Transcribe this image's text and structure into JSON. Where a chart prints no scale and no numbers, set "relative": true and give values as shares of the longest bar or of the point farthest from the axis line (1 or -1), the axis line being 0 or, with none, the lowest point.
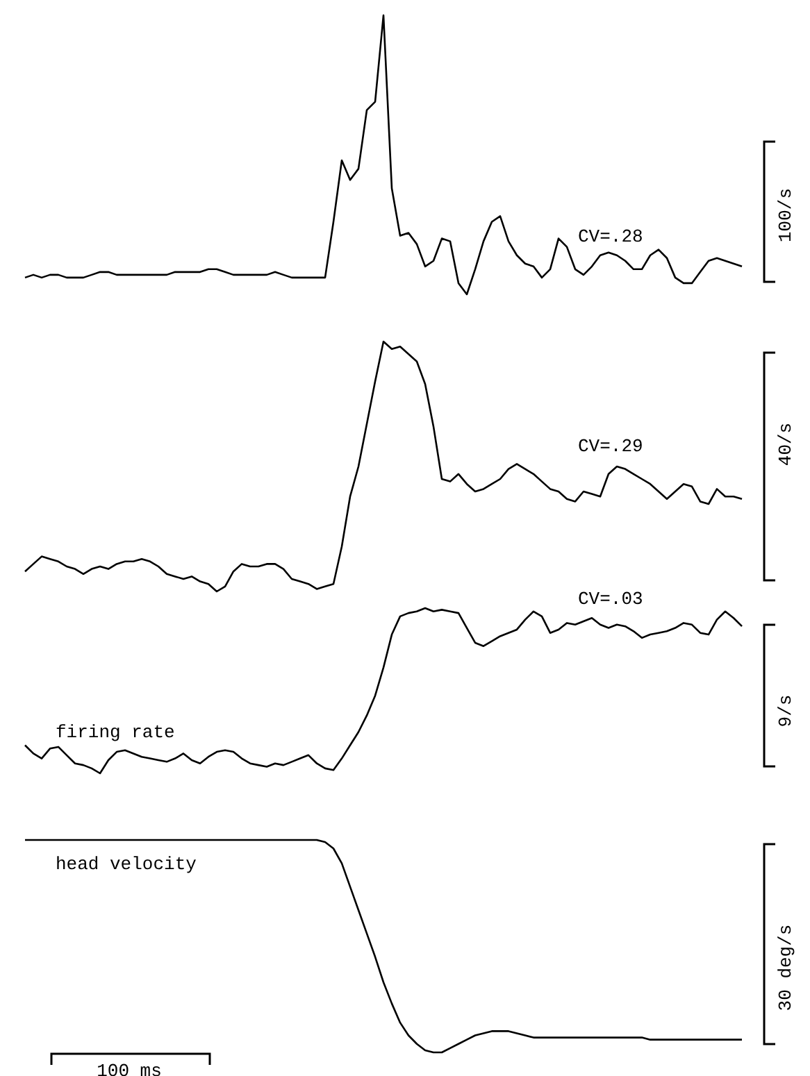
{
  "chart_data": [
    {
      "type": "line",
      "relative": true,
      "categories": [
        null,
        null,
        null,
        null,
        null,
        null,
        null,
        null,
        null,
        null,
        null,
        null,
        null,
        null,
        null,
        null,
        null,
        null,
        null,
        null,
        null,
        null,
        null,
        null,
        null,
        null,
        null,
        null,
        null,
        null,
        null,
        null,
        null,
        null,
        null,
        null,
        null,
        null,
        null,
        null,
        null,
        null,
        null,
        null,
        null,
        null,
        null,
        null,
        null,
        null,
        null,
        null,
        null,
        null,
        null,
        null,
        null,
        null,
        null,
        null,
        null,
        null,
        null,
        null,
        null,
        null,
        null,
        null,
        null,
        null,
        null,
        null,
        null,
        null,
        null,
        null,
        null,
        null,
        null,
        null,
        null,
        null,
        null,
        null,
        null,
        null,
        null
      ],
      "series": [
        {
          "color": "#000000",
          "values": [
            0.06,
            0.07,
            0.06,
            0.07,
            0.07,
            0.06,
            0.06,
            0.06,
            0.07,
            0.08,
            0.08,
            0.07,
            0.07,
            0.07,
            0.07,
            0.07,
            0.07,
            0.07,
            0.08,
            0.08,
            0.08,
            0.08,
            0.09,
            0.09,
            0.08,
            0.07,
            0.07,
            0.07,
            0.07,
            0.07,
            0.08,
            0.07,
            0.06,
            0.06,
            0.06,
            0.06,
            0.06,
            0.26,
            0.48,
            0.41,
            0.45,
            0.66,
            0.69,
            1,
            0.38,
            0.21,
            0.22,
            0.18,
            0.1,
            0.12,
            0.2,
            0.19,
            0.04,
            0,
            0.09,
            0.19,
            0.26,
            0.28,
            0.19,
            0.14,
            0.11,
            0.1,
            0.06,
            0.09,
            0.2,
            0.17,
            0.09,
            0.07,
            0.1,
            0.14,
            0.15,
            0.14,
            0.12,
            0.09,
            0.09,
            0.14,
            0.16,
            0.13,
            0.06,
            0.04,
            0.04,
            0.08,
            0.12,
            0.13,
            0.12,
            0.11,
            0.1
          ]
        }
      ],
      "annotations": [
        "CV=.28",
        "100/s"
      ]
    },
    {
      "type": "line",
      "relative": true,
      "categories": [
        null,
        null,
        null,
        null,
        null,
        null,
        null,
        null,
        null,
        null,
        null,
        null,
        null,
        null,
        null,
        null,
        null,
        null,
        null,
        null,
        null,
        null,
        null,
        null,
        null,
        null,
        null,
        null,
        null,
        null,
        null,
        null,
        null,
        null,
        null,
        null,
        null,
        null,
        null,
        null,
        null,
        null,
        null,
        null,
        null,
        null,
        null,
        null,
        null,
        null,
        null,
        null,
        null,
        null,
        null,
        null,
        null,
        null,
        null,
        null,
        null,
        null,
        null,
        null,
        null,
        null,
        null,
        null,
        null,
        null,
        null,
        null,
        null,
        null,
        null,
        null,
        null,
        null,
        null,
        null,
        null,
        null,
        null,
        null,
        null,
        null,
        null
      ],
      "series": [
        {
          "color": "#000000",
          "values": [
            0.08,
            0.11,
            0.14,
            0.13,
            0.12,
            0.1,
            0.09,
            0.07,
            0.09,
            0.1,
            0.09,
            0.11,
            0.12,
            0.12,
            0.13,
            0.12,
            0.1,
            0.07,
            0.06,
            0.05,
            0.06,
            0.04,
            0.03,
            0,
            0.02,
            0.08,
            0.11,
            0.1,
            0.1,
            0.11,
            0.11,
            0.09,
            0.05,
            0.04,
            0.03,
            0.01,
            0.02,
            0.03,
            0.18,
            0.38,
            0.5,
            0.67,
            0.84,
            1,
            0.97,
            0.98,
            0.95,
            0.92,
            0.83,
            0.66,
            0.45,
            0.44,
            0.47,
            0.43,
            0.4,
            0.41,
            0.43,
            0.45,
            0.49,
            0.51,
            0.49,
            0.47,
            0.44,
            0.41,
            0.4,
            0.37,
            0.36,
            0.4,
            0.39,
            0.38,
            0.47,
            0.5,
            0.49,
            0.47,
            0.45,
            0.43,
            0.4,
            0.37,
            0.4,
            0.43,
            0.42,
            0.36,
            0.35,
            0.41,
            0.38,
            0.38,
            0.37
          ]
        }
      ],
      "annotations": [
        "CV=.29",
        "40/s"
      ]
    },
    {
      "type": "line",
      "relative": true,
      "categories": [
        null,
        null,
        null,
        null,
        null,
        null,
        null,
        null,
        null,
        null,
        null,
        null,
        null,
        null,
        null,
        null,
        null,
        null,
        null,
        null,
        null,
        null,
        null,
        null,
        null,
        null,
        null,
        null,
        null,
        null,
        null,
        null,
        null,
        null,
        null,
        null,
        null,
        null,
        null,
        null,
        null,
        null,
        null,
        null,
        null,
        null,
        null,
        null,
        null,
        null,
        null,
        null,
        null,
        null,
        null,
        null,
        null,
        null,
        null,
        null,
        null,
        null,
        null,
        null,
        null,
        null,
        null,
        null,
        null,
        null,
        null,
        null,
        null,
        null,
        null,
        null,
        null,
        null,
        null,
        null,
        null,
        null,
        null,
        null,
        null,
        null,
        null
      ],
      "series": [
        {
          "color": "#000000",
          "values": [
            0.17,
            0.12,
            0.09,
            0.15,
            0.16,
            0.11,
            0.06,
            0.05,
            0.03,
            0,
            0.08,
            0.13,
            0.14,
            0.12,
            0.1,
            0.09,
            0.08,
            0.07,
            0.09,
            0.12,
            0.08,
            0.06,
            0.1,
            0.13,
            0.14,
            0.13,
            0.09,
            0.06,
            0.05,
            0.04,
            0.06,
            0.05,
            0.07,
            0.09,
            0.11,
            0.06,
            0.03,
            0.02,
            0.09,
            0.17,
            0.25,
            0.35,
            0.47,
            0.64,
            0.84,
            0.95,
            0.97,
            0.98,
            1,
            0.98,
            0.99,
            0.98,
            0.97,
            0.88,
            0.79,
            0.77,
            0.8,
            0.83,
            0.85,
            0.87,
            0.93,
            0.98,
            0.95,
            0.85,
            0.87,
            0.91,
            0.9,
            0.92,
            0.94,
            0.9,
            0.88,
            0.9,
            0.89,
            0.86,
            0.82,
            0.84,
            0.85,
            0.86,
            0.88,
            0.91,
            0.9,
            0.85,
            0.84,
            0.93,
            0.98,
            0.94,
            0.89
          ]
        }
      ],
      "annotations": [
        "CV=.03",
        "firing rate",
        "9/s"
      ]
    },
    {
      "type": "line",
      "relative": true,
      "categories": [
        null,
        null,
        null,
        null,
        null,
        null,
        null,
        null,
        null,
        null,
        null,
        null,
        null,
        null,
        null,
        null,
        null,
        null,
        null,
        null,
        null,
        null,
        null,
        null,
        null,
        null,
        null,
        null,
        null,
        null,
        null,
        null,
        null,
        null,
        null,
        null,
        null,
        null,
        null,
        null,
        null,
        null,
        null,
        null,
        null,
        null,
        null,
        null,
        null,
        null,
        null,
        null,
        null,
        null,
        null,
        null,
        null,
        null,
        null,
        null,
        null,
        null,
        null,
        null,
        null,
        null,
        null,
        null,
        null,
        null,
        null,
        null,
        null,
        null,
        null,
        null,
        null,
        null,
        null,
        null,
        null,
        null,
        null,
        null,
        null,
        null,
        null
      ],
      "series": [
        {
          "color": "#000000",
          "values": [
            1,
            1,
            1,
            1,
            1,
            1,
            1,
            1,
            1,
            1,
            1,
            1,
            1,
            1,
            1,
            1,
            1,
            1,
            1,
            1,
            1,
            1,
            1,
            1,
            1,
            1,
            1,
            1,
            1,
            1,
            1,
            1,
            1,
            1,
            1,
            1,
            0.99,
            0.96,
            0.89,
            0.78,
            0.67,
            0.56,
            0.45,
            0.33,
            0.23,
            0.14,
            0.08,
            0.04,
            0.01,
            0,
            0,
            0.02,
            0.04,
            0.06,
            0.08,
            0.09,
            0.1,
            0.1,
            0.1,
            0.09,
            0.08,
            0.07,
            0.07,
            0.07,
            0.07,
            0.07,
            0.07,
            0.07,
            0.07,
            0.07,
            0.07,
            0.07,
            0.07,
            0.07,
            0.07,
            0.06,
            0.06,
            0.06,
            0.06,
            0.06,
            0.06,
            0.06,
            0.06,
            0.06,
            0.06,
            0.06,
            0.06
          ]
        }
      ],
      "annotations": [
        "head velocity",
        "30 deg/s",
        "100 ms"
      ]
    }
  ]
}
